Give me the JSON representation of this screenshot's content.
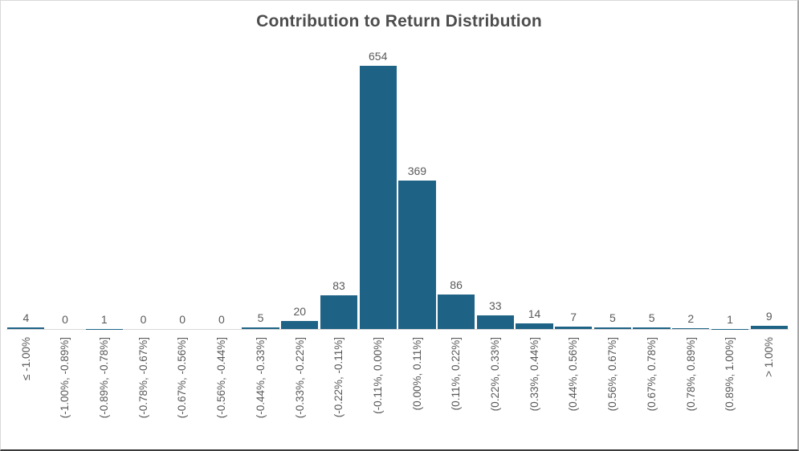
{
  "chart_data": {
    "type": "bar",
    "title": "Contribution to Return Distribution",
    "categories": [
      "≤ -1.00%",
      "(-1.00%, -0.89%]",
      "(-0.89%, -0.78%]",
      "(-0.78%, -0.67%]",
      "(-0.67%, -0.56%]",
      "(-0.56%, -0.44%]",
      "(-0.44%, -0.33%]",
      "(-0.33%, -0.22%]",
      "(-0.22%, -0.11%]",
      "(-0.11%, 0.00%]",
      "(0.00%, 0.11%]",
      "(0.11%, 0.22%]",
      "(0.22%, 0.33%]",
      "(0.33%, 0.44%]",
      "(0.44%, 0.56%]",
      "(0.56%, 0.67%]",
      "(0.67%, 0.78%]",
      "(0.78%, 0.89%]",
      "(0.89%, 1.00%]",
      "> 1.00%"
    ],
    "values": [
      4,
      0,
      1,
      0,
      0,
      0,
      5,
      20,
      83,
      654,
      369,
      86,
      33,
      14,
      7,
      5,
      5,
      2,
      1,
      9
    ],
    "xlabel": "",
    "ylabel": "",
    "ylim": [
      0,
      700
    ],
    "grid": false,
    "legend_position": "none",
    "value_labels_shown": true,
    "x_tick_rotation_degrees": 90,
    "colors": {
      "bar": "#1E6386",
      "data_label": "#595959",
      "tick_label": "#595959",
      "title": "#4D4D4D",
      "axis_line": "#D9D9D9",
      "background": "#FFFFFF"
    }
  }
}
